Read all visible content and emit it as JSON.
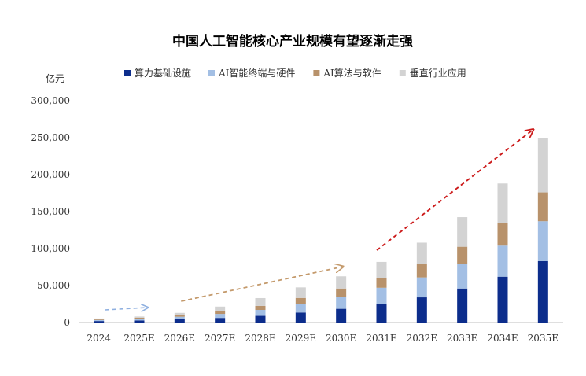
{
  "chart_data": {
    "type": "bar",
    "stacked": true,
    "title": "中国人工智能核心产业规模有望逐渐走强",
    "ylabel": "亿元",
    "xlabel": "",
    "ylim": [
      0,
      300000
    ],
    "yticks": [
      0,
      50000,
      100000,
      150000,
      200000,
      250000,
      300000
    ],
    "ytick_labels": [
      "0",
      "50,000",
      "100,000",
      "150,000",
      "200,000",
      "250,000",
      "300,000"
    ],
    "categories": [
      "2024",
      "2025E",
      "2026E",
      "2027E",
      "2028E",
      "2029E",
      "2030E",
      "2031E",
      "2032E",
      "2033E",
      "2034E",
      "2035E"
    ],
    "series": [
      {
        "name": "算力基础设施",
        "color": "#0c2d8c",
        "values": [
          2000,
          2800,
          4300,
          6200,
          9000,
          13500,
          18500,
          25000,
          34000,
          46000,
          62000,
          83000
        ]
      },
      {
        "name": "AI智能终端与硬件",
        "color": "#a3bfe4",
        "values": [
          1400,
          2200,
          3500,
          5400,
          8000,
          11500,
          16500,
          22000,
          27000,
          33000,
          42000,
          54000
        ]
      },
      {
        "name": "AI算法与软件",
        "color": "#b8926b",
        "values": [
          1000,
          1600,
          2500,
          3700,
          5500,
          8200,
          11000,
          13500,
          18000,
          23500,
          31000,
          39000
        ]
      },
      {
        "name": "垂直行业应用",
        "color": "#d3d3d3",
        "values": [
          1000,
          1500,
          2700,
          6200,
          10500,
          14300,
          16500,
          21500,
          29000,
          40000,
          53000,
          73000
        ]
      }
    ],
    "legend_position": "top",
    "grid": false,
    "annotations": [
      {
        "type": "trend-arrow",
        "from": "2024",
        "to": "2025E",
        "color": "#8fb0e0"
      },
      {
        "type": "trend-arrow",
        "from": "2026E",
        "to": "2030E",
        "color": "#c49a6c"
      },
      {
        "type": "trend-arrow",
        "from": "2031E",
        "to": "2035E",
        "color": "#cc1a1a"
      }
    ]
  }
}
